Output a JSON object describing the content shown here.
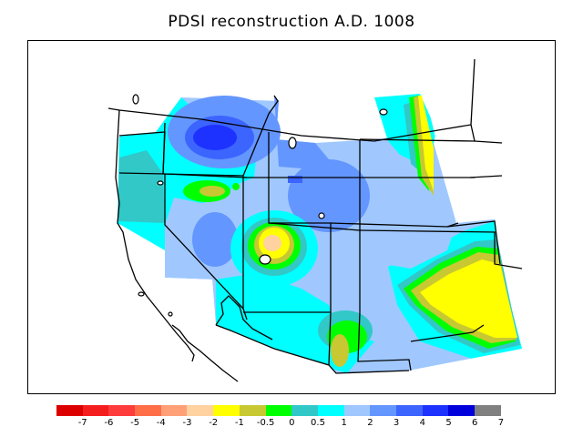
{
  "title": "PDSI reconstruction A.D. 1008",
  "legend": {
    "colors": [
      "#dc0000",
      "#f41e1e",
      "#ff3c3c",
      "#ff6e46",
      "#ffa078",
      "#ffd2a0",
      "#ffff00",
      "#c8c832",
      "#00ff00",
      "#32c8c8",
      "#00ffff",
      "#a0c8ff",
      "#6496ff",
      "#3c64ff",
      "#1e32ff",
      "#0000dc",
      "#808080"
    ],
    "labels": [
      "-7",
      "-6",
      "-5",
      "-4",
      "-3",
      "-2",
      "-1",
      "-0.5",
      "0",
      "0.5",
      "1",
      "2",
      "3",
      "4",
      "5",
      "6",
      "7"
    ]
  },
  "map": {
    "region": "Western United States",
    "background_class_color": "#a0c8ff"
  }
}
